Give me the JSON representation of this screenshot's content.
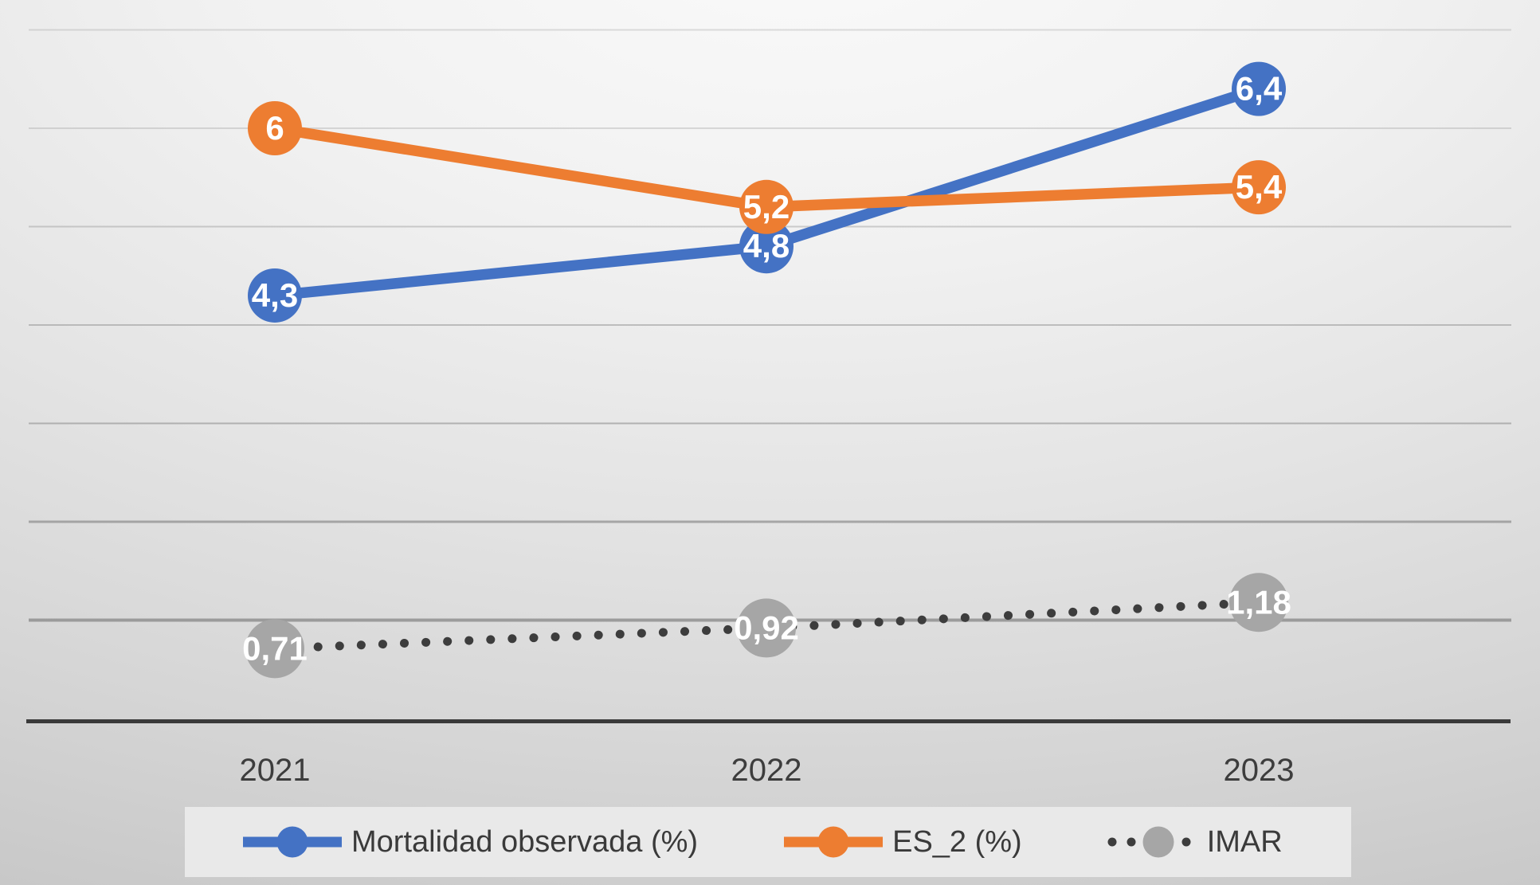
{
  "chart_data": {
    "type": "line",
    "title": "",
    "xlabel": "",
    "ylabel": "",
    "categories": [
      "2021",
      "2022",
      "2023"
    ],
    "series": [
      {
        "name": "Mortalidad observada (%)",
        "values": [
          4.3,
          4.8,
          6.4
        ],
        "labels": [
          "4,3",
          "4,8",
          "6,4"
        ],
        "color": "#4472C4",
        "style": "solid"
      },
      {
        "name": "ES_2 (%)",
        "values": [
          6,
          5.2,
          5.4
        ],
        "labels": [
          "6",
          "5,2",
          "5,4"
        ],
        "color": "#ED7D31",
        "style": "solid"
      },
      {
        "name": "IMAR",
        "values": [
          0.71,
          0.92,
          1.18
        ],
        "labels": [
          "0,71",
          "0,92",
          "1,18"
        ],
        "color": "#A6A6A6",
        "line_color": "#3d3d3d",
        "style": "dotted"
      }
    ],
    "ylim": [
      0,
      7.3
    ],
    "gridlines": {
      "values": [
        1,
        2,
        3,
        4,
        5,
        6,
        7
      ],
      "color": "#8f8f8f",
      "visible": true
    },
    "axis_color": "#3a3a3a",
    "tick_color": "#3d3d3d",
    "data_label_color": "#ffffff",
    "legend_position": "bottom",
    "legend_background": "#e9e9e9"
  }
}
